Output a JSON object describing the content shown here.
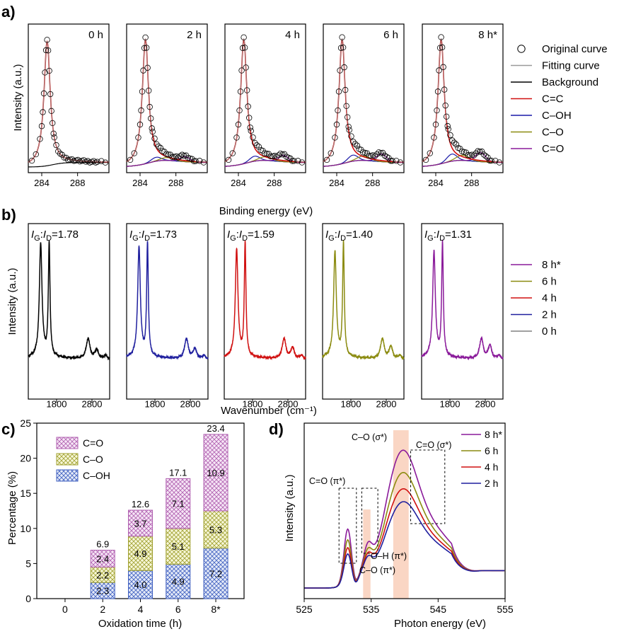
{
  "colors": {
    "zero_h": "#000000",
    "two_h": "#1f1f9e",
    "four_h": "#d01010",
    "six_h": "#8b8b10",
    "eight_h": "#8a1a9a",
    "fit_gray": "#9a9a9a",
    "c_eq_c": "#d01010",
    "c_oh": "#1a1aa8",
    "c_o": "#8b8b10",
    "c_eq_o": "#8a1a9a",
    "hatch_ceqo": "#b060b0",
    "hatch_co": "#a0a030",
    "hatch_coh": "#4060c0",
    "highlight": "#f8c8b0"
  },
  "panel_a": {
    "label": "a)",
    "ylabel": "Intensity (a.u.)",
    "xlabel": "Binding energy (eV)",
    "xticks": [
      "284",
      "288"
    ],
    "xtick_values": [
      284,
      288
    ],
    "xrange": [
      282.5,
      291.5
    ],
    "subpanels": [
      {
        "title": "0 h",
        "has_oxy_bump": false
      },
      {
        "title": "2 h",
        "has_oxy_bump": true
      },
      {
        "title": "4 h",
        "has_oxy_bump": true
      },
      {
        "title": "6 h",
        "has_oxy_bump": true
      },
      {
        "title": "8 h*",
        "has_oxy_bump": true
      }
    ],
    "legend": [
      {
        "label": "Original curve",
        "marker": "circle"
      },
      {
        "label": "Fitting curve",
        "color": "#9a9a9a"
      },
      {
        "label": "Background",
        "color": "#000000"
      },
      {
        "label": "C=C",
        "color": "#d01010"
      },
      {
        "label": "C–OH",
        "color": "#1a1aa8"
      },
      {
        "label": "C–O",
        "color": "#8b8b10"
      },
      {
        "label": "C=O",
        "color": "#8a1a9a"
      }
    ]
  },
  "panel_b": {
    "label": "b)",
    "ylabel": "Intensity (a.u.)",
    "xlabel": "Wavenumber (cm⁻¹)",
    "xticks": [
      "1800",
      "2800"
    ],
    "ratio_prefix_1": "I",
    "ratio_sub_1": "G",
    "ratio_colon": ":",
    "ratio_prefix_2": "I",
    "ratio_sub_2": "D",
    "subpanels": [
      {
        "ratio": "=1.78",
        "color": "#000000",
        "g": 0.78,
        "d": 1.0
      },
      {
        "ratio": "=1.73",
        "color": "#1f1f9e",
        "g": 0.75,
        "d": 0.97
      },
      {
        "ratio": "=1.59",
        "color": "#d01010",
        "g": 0.72,
        "d": 0.95
      },
      {
        "ratio": "=1.40",
        "color": "#8b8b10",
        "g": 0.7,
        "d": 0.93
      },
      {
        "ratio": "=1.31",
        "color": "#8a1a9a",
        "g": 0.68,
        "d": 0.93
      }
    ],
    "legend": [
      {
        "label": "8 h*",
        "color": "#8a1a9a"
      },
      {
        "label": "6 h",
        "color": "#8b8b10"
      },
      {
        "label": "4 h",
        "color": "#d01010"
      },
      {
        "label": "2 h",
        "color": "#1f1f9e"
      },
      {
        "label": "0 h",
        "color": "#808080"
      }
    ]
  },
  "chart_data": [
    {
      "type": "bar",
      "panel": "c)",
      "xlabel": "Oxidation time (h)",
      "ylabel": "Percentage (%)",
      "ylim": [
        0,
        25
      ],
      "yticks": [
        "0",
        "5",
        "10",
        "15",
        "20",
        "25"
      ],
      "categories": [
        "0",
        "2",
        "4",
        "6",
        "8*"
      ],
      "series": [
        {
          "name": "C–OH",
          "values": [
            0,
            2.3,
            4.0,
            4.9,
            7.2
          ],
          "labels": [
            "",
            "2.3",
            "4.0",
            "4.9",
            "7.2"
          ]
        },
        {
          "name": "C–O",
          "values": [
            0,
            2.2,
            4.9,
            5.1,
            5.3
          ],
          "labels": [
            "",
            "2.2",
            "4.9",
            "5.1",
            "5.3"
          ]
        },
        {
          "name": "C=O",
          "values": [
            0,
            2.4,
            3.7,
            7.1,
            10.9
          ],
          "labels": [
            "",
            "2.4",
            "3.7",
            "7.1",
            "10.9"
          ]
        }
      ],
      "totals": [
        "",
        "6.9",
        "12.6",
        "17.1",
        "23.4"
      ],
      "legend": [
        "C=O",
        "C–O",
        "C–OH"
      ]
    },
    {
      "type": "line",
      "panel": "d)",
      "xlabel": "Photon energy (eV)",
      "ylabel": "Intensity (a.u.)",
      "xlim": [
        525,
        555
      ],
      "xticks": [
        "525",
        "535",
        "545",
        "555"
      ],
      "series_names": [
        "8 h*",
        "6 h",
        "4 h",
        "2 h"
      ],
      "amplitudes": [
        1.0,
        0.74,
        0.55,
        0.4
      ],
      "annotations": {
        "ceqo_pi": "C=O (π*)",
        "co_sigma": "C–O (σ*)",
        "ceqo_sigma": "C=O (σ*)",
        "oh_pi": "O–H (π*)",
        "co_pi": "C–O (π*)"
      }
    }
  ]
}
